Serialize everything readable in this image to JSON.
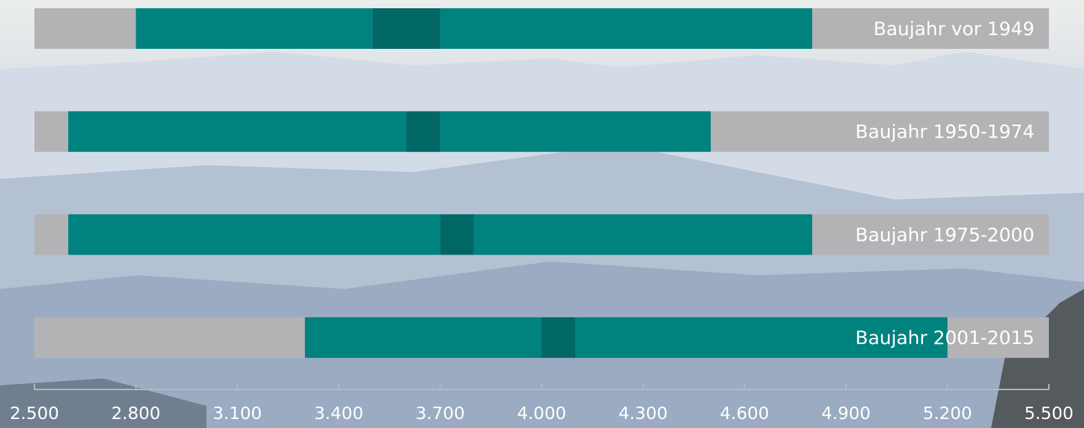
{
  "chart_data": {
    "type": "range-bar",
    "categories": [
      "Baujahr vor 1949",
      "Baujahr 1950-1974",
      "Baujahr 1975-2000",
      "Baujahr 2001-2015"
    ],
    "low": [
      2800,
      2600,
      2600,
      3300
    ],
    "median_low": [
      3500,
      3600,
      3700,
      4000
    ],
    "median_high": [
      3700,
      3700,
      3800,
      4100
    ],
    "high": [
      4800,
      4500,
      4800,
      5200
    ],
    "color": "#00827f",
    "median_color": "#006764",
    "track_color": "#b3b3b6",
    "xlim": [
      2500,
      5500
    ],
    "xticks": [
      {
        "value": 2500,
        "label": "2.500"
      },
      {
        "value": 2800,
        "label": "2.800"
      },
      {
        "value": 3100,
        "label": "3.100"
      },
      {
        "value": 3400,
        "label": "3.400"
      },
      {
        "value": 3700,
        "label": "3.700"
      },
      {
        "value": 4000,
        "label": "4.000"
      },
      {
        "value": 4300,
        "label": "4.300"
      },
      {
        "value": 4600,
        "label": "4.600"
      },
      {
        "value": 4900,
        "label": "4.900"
      },
      {
        "value": 5200,
        "label": "5.200"
      },
      {
        "value": 5500,
        "label": "5.500"
      }
    ]
  }
}
